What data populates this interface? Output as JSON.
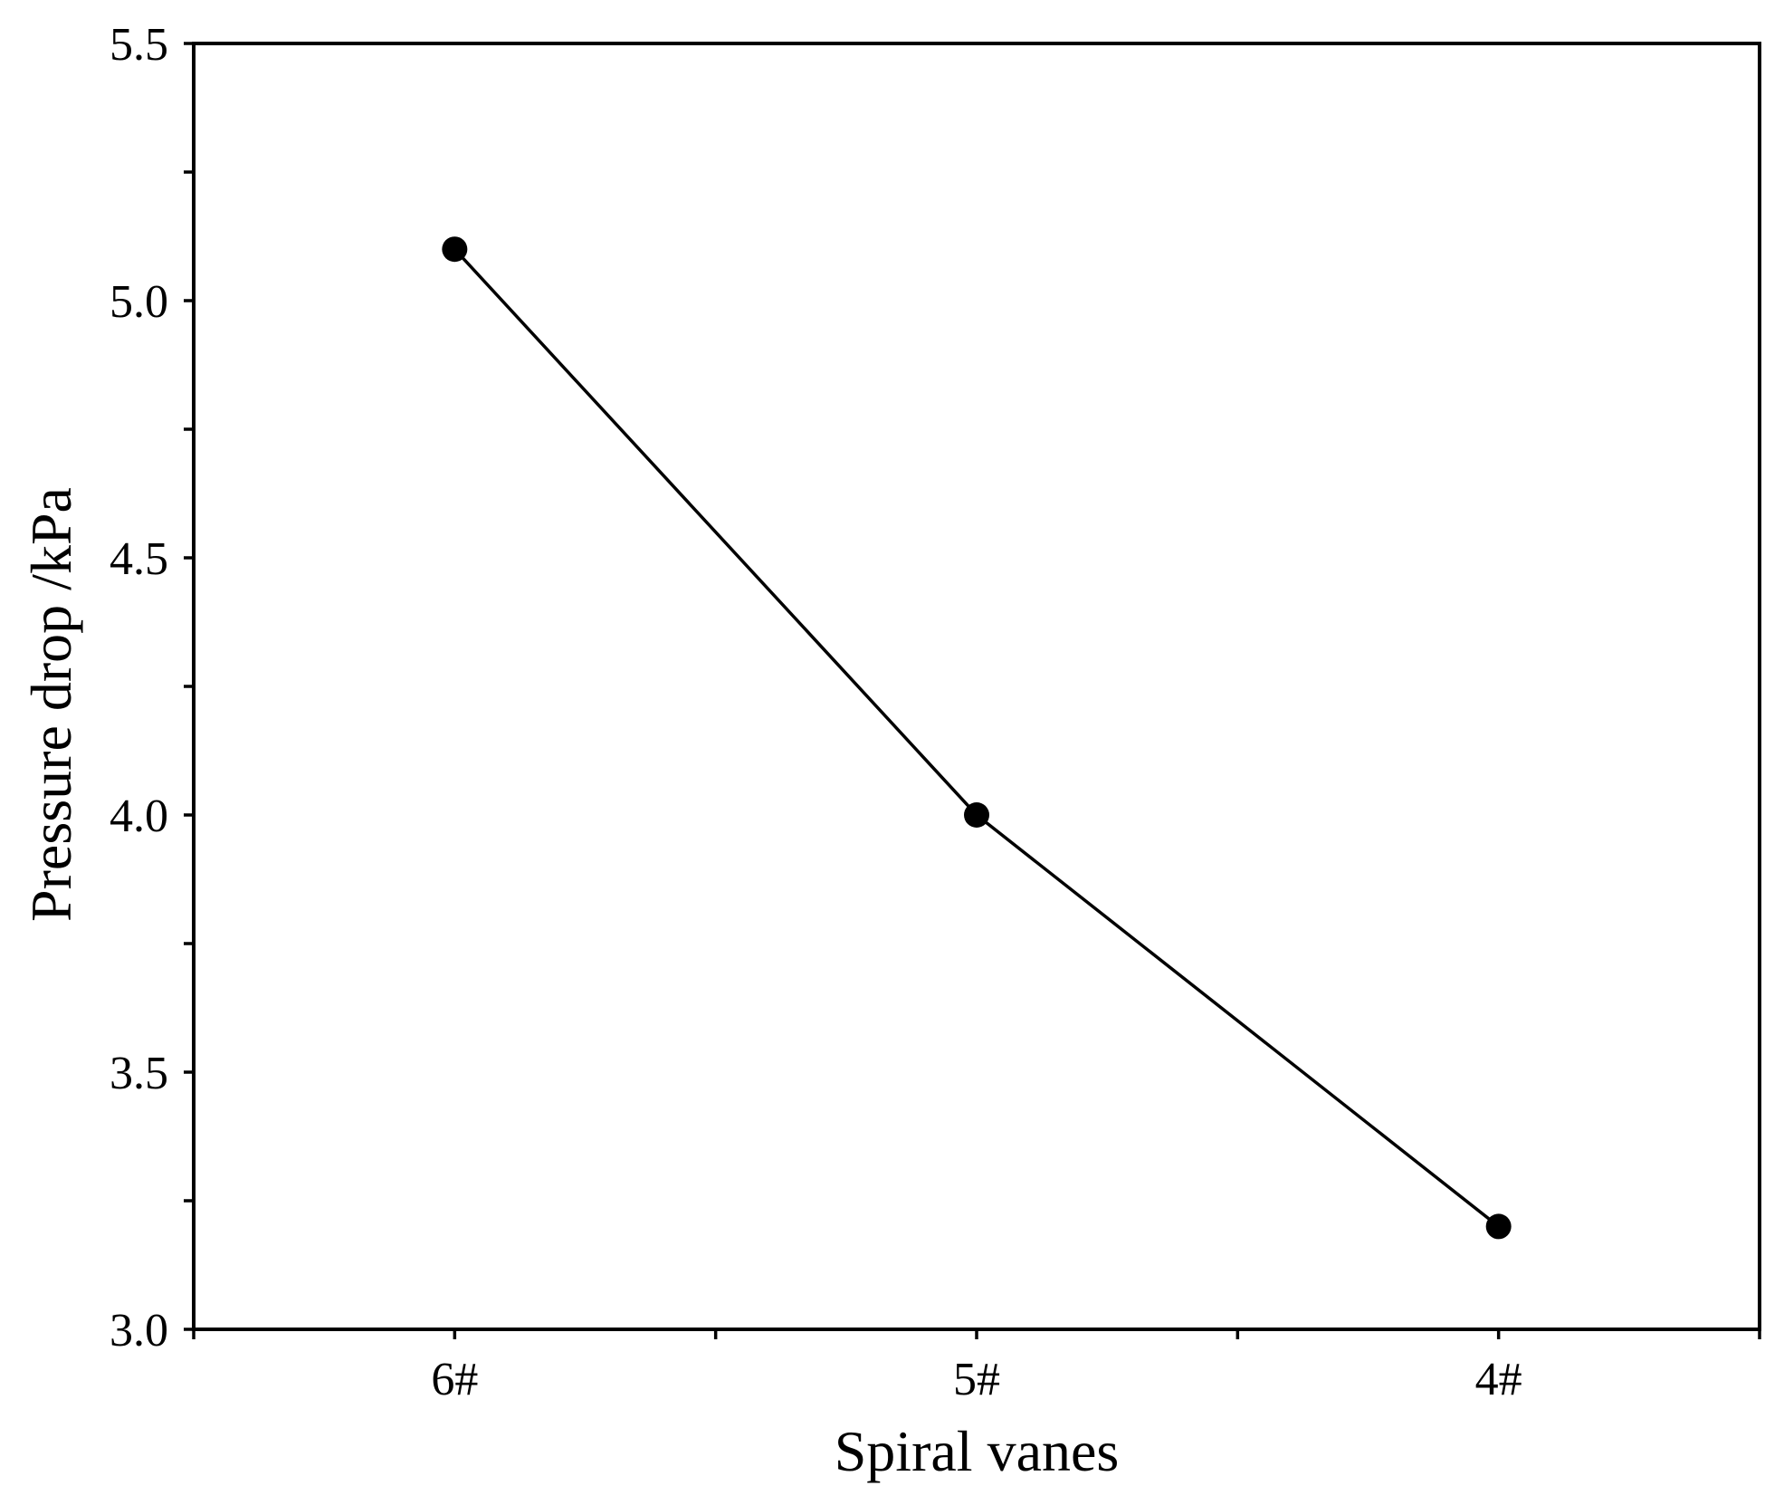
{
  "chart_data": {
    "type": "line",
    "categories": [
      "6#",
      "5#",
      "4#"
    ],
    "series": [
      {
        "values": [
          5.1,
          4.0,
          3.2
        ]
      }
    ],
    "xlabel": "Spiral vanes",
    "ylabel": "Pressure drop /kPa",
    "ylim": [
      3.0,
      5.5
    ],
    "yticks": [
      "3.0",
      "3.5",
      "4.0",
      "4.5",
      "5.0",
      "5.5"
    ],
    "grid": false,
    "legend": "none",
    "marker": "filled-circle",
    "color": "#000000"
  }
}
